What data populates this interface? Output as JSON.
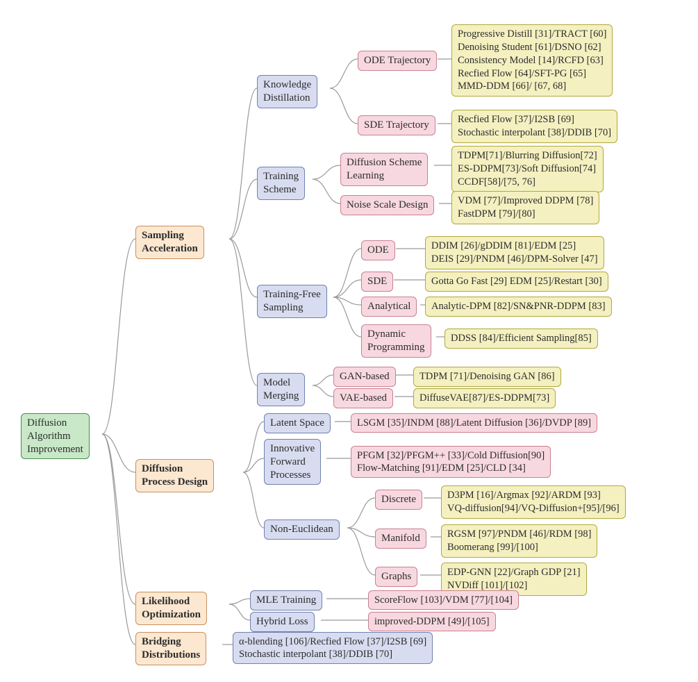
{
  "colors": {
    "green_bg": "#c8e8c8",
    "green_border": "#4a8a4a",
    "orange_bg": "#fce8d0",
    "orange_border": "#c89060",
    "blue_bg": "#d8dcf0",
    "blue_border": "#7080b0",
    "pink_bg": "#f8d8e0",
    "pink_border": "#c88090",
    "yellow_bg": "#f4f0c0",
    "yellow_border": "#b0a840",
    "connector": "#999999"
  },
  "root": {
    "label": "Diffusion\nAlgorithm\nImprovement"
  },
  "l1": {
    "sampling": "Sampling\nAcceleration",
    "process": "Diffusion\nProcess Design",
    "likelihood": "Likelihood\nOptimization",
    "bridging": "Bridging\nDistributions"
  },
  "l2": {
    "kd": "Knowledge\nDistillation",
    "ts": "Training\nScheme",
    "tfs": "Training-Free\nSampling",
    "mm": "Model\nMerging",
    "latent": "Latent Space",
    "ifp": "Innovative\nForward\nProcesses",
    "noneuc": "Non-Euclidean",
    "mle": "MLE Training",
    "hybrid": "Hybrid Loss"
  },
  "l3": {
    "ode_traj": "ODE Trajectory",
    "sde_traj": "SDE Trajectory",
    "dsl": "Diffusion Scheme\nLearning",
    "nsd": "Noise Scale Design",
    "ode": "ODE",
    "sde": "SDE",
    "analytical": "Analytical",
    "dynprog": "Dynamic\nProgramming",
    "gan": "GAN-based",
    "vae": "VAE-based",
    "discrete": "Discrete",
    "manifold": "Manifold",
    "graphs": "Graphs"
  },
  "leaves": {
    "ode_traj_leaf": "Progressive Distill [31]/TRACT [60]\nDenoising Student [61]/DSNO [62]\nConsistency Model [14]/RCFD [63]\nRecfied Flow [64]/SFT-PG [65]\nMMD-DDM [66]/ [67, 68]",
    "sde_traj_leaf": "Recfied Flow [37]/I2SB [69]\nStochastic interpolant [38]/DDIB [70]",
    "dsl_leaf": "TDPM[71]/Blurring Diffusion[72]\nES-DDPM[73]/Soft Diffusion[74]\nCCDF[58]/[75, 76]",
    "nsd_leaf": "VDM [77]/Improved DDPM [78]\nFastDPM [79]/[80]",
    "ode_leaf": "DDIM [26]/gDDIM [81]/EDM [25]\nDEIS [29]/PNDM [46]/DPM-Solver [47]",
    "sde_leaf": "Gotta Go Fast [29] EDM [25]/Restart [30]",
    "analytical_leaf": "Analytic-DPM [82]/SN&PNR-DDPM [83]",
    "dynprog_leaf": "DDSS [84]/Efficient Sampling[85]",
    "gan_leaf": "TDPM [71]/Denoising GAN [86]",
    "vae_leaf": "DiffuseVAE[87]/ES-DDPM[73]",
    "latent_leaf": "LSGM [35]/INDM [88]/Latent Diffusion [36]/DVDP [89]",
    "ifp_leaf": "PFGM [32]/PFGM++ [33]/Cold Diffusion[90]\nFlow-Matching [91]/EDM [25]/CLD [34]",
    "discrete_leaf": "D3PM [16]/Argmax [92]/ARDM [93]\nVQ-diffusion[94]/VQ-Diffusion+[95]/[96]",
    "manifold_leaf": "RGSM [97]/PNDM [46]/RDM [98]\nBoomerang [99]/[100]",
    "graphs_leaf": "EDP-GNN [22]/Graph GDP [21]\nNVDiff [101]/[102]",
    "mle_leaf": "ScoreFlow [103]/VDM [77]/[104]",
    "hybrid_leaf": "improved-DDPM [49]/[105]",
    "bridging_leaf": "α-blending [106]/Recfied Flow [37]/I2SB [69]\nStochastic interpolant [38]/DDIB [70]"
  }
}
